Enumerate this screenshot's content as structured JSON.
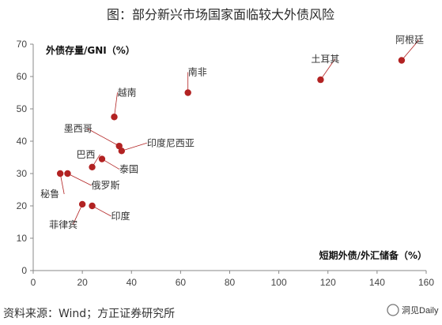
{
  "title": "图：部分新兴市场国家面临较大外债风险",
  "source": "资料来源：Wind；方正证券研究所",
  "watermark": "洞见Daily",
  "colors": {
    "point": "#b22222",
    "axis": "#888888",
    "leader": "#b22222"
  },
  "chart_data": {
    "type": "scatter",
    "title": "图：部分新兴市场国家面临较大外债风险",
    "xlabel": "短期外债/外汇储备（%）",
    "ylabel": "外债存量/GNI（%）",
    "xlim": [
      0,
      160
    ],
    "ylim": [
      0,
      70
    ],
    "xticks": [
      0,
      20,
      40,
      60,
      80,
      100,
      120,
      140,
      160
    ],
    "yticks": [
      0,
      10,
      20,
      30,
      40,
      50,
      60,
      70
    ],
    "grid": false,
    "points": [
      {
        "label": "阿根廷",
        "x": 150,
        "y": 65
      },
      {
        "label": "土耳其",
        "x": 117,
        "y": 59
      },
      {
        "label": "南非",
        "x": 63,
        "y": 55
      },
      {
        "label": "越南",
        "x": 33,
        "y": 47.5
      },
      {
        "label": "墨西哥",
        "x": 35,
        "y": 38.5
      },
      {
        "label": "印度尼西亚",
        "x": 36,
        "y": 37
      },
      {
        "label": "巴西",
        "x": 24,
        "y": 32
      },
      {
        "label": "泰国",
        "x": 28,
        "y": 34.5
      },
      {
        "label": "秘鲁",
        "x": 11,
        "y": 30
      },
      {
        "label": "俄罗斯",
        "x": 14,
        "y": 30
      },
      {
        "label": "菲律宾",
        "x": 20,
        "y": 20.5
      },
      {
        "label": "印度",
        "x": 24,
        "y": 20
      }
    ]
  }
}
